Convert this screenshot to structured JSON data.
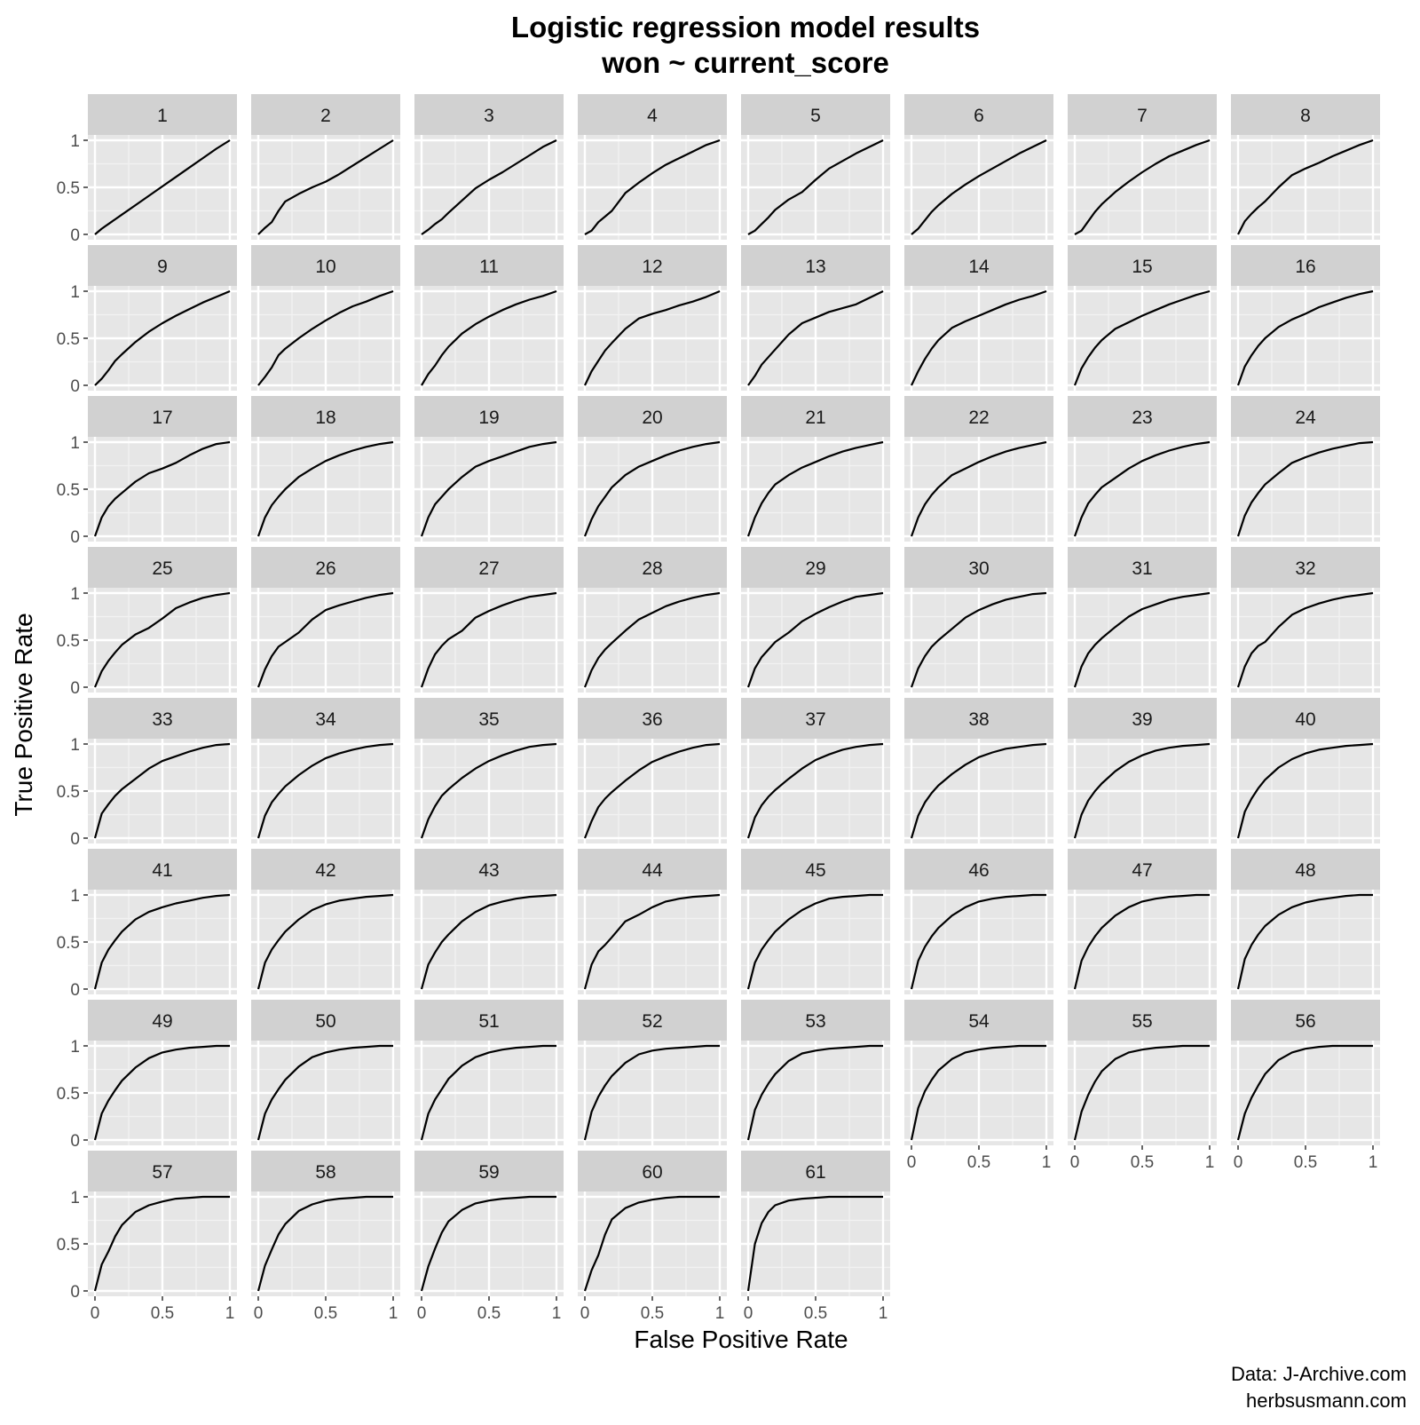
{
  "chart_data": {
    "type": "line",
    "title": "Logistic regression model results",
    "subtitle": "won ~ current_score",
    "xlabel": "False Positive Rate",
    "ylabel": "True Positive Rate",
    "xlim": [
      0,
      1
    ],
    "ylim": [
      0,
      1
    ],
    "x_ticks": [
      0,
      0.5,
      1
    ],
    "x_tick_labels": [
      "0",
      "0.5",
      "1"
    ],
    "y_ticks": [
      0,
      0.5,
      1
    ],
    "y_tick_labels": [
      "0",
      "0.5",
      "1"
    ],
    "grid": true,
    "facet_columns": 8,
    "curve_x": [
      0,
      0.05,
      0.1,
      0.15,
      0.2,
      0.3,
      0.4,
      0.5,
      0.6,
      0.7,
      0.8,
      0.9,
      1
    ],
    "panels": [
      {
        "label": "1",
        "y": [
          0,
          0.06,
          0.11,
          0.16,
          0.21,
          0.31,
          0.41,
          0.51,
          0.61,
          0.71,
          0.81,
          0.91,
          1
        ]
      },
      {
        "label": "2",
        "y": [
          0,
          0.07,
          0.13,
          0.25,
          0.35,
          0.43,
          0.5,
          0.56,
          0.64,
          0.73,
          0.82,
          0.91,
          1
        ]
      },
      {
        "label": "3",
        "y": [
          0,
          0.05,
          0.11,
          0.16,
          0.23,
          0.36,
          0.49,
          0.58,
          0.66,
          0.75,
          0.84,
          0.93,
          1
        ]
      },
      {
        "label": "4",
        "y": [
          0,
          0.04,
          0.13,
          0.19,
          0.25,
          0.44,
          0.55,
          0.65,
          0.74,
          0.81,
          0.88,
          0.95,
          1
        ]
      },
      {
        "label": "5",
        "y": [
          0,
          0.04,
          0.11,
          0.18,
          0.26,
          0.37,
          0.45,
          0.58,
          0.7,
          0.78,
          0.86,
          0.93,
          1
        ]
      },
      {
        "label": "6",
        "y": [
          0,
          0.06,
          0.15,
          0.24,
          0.31,
          0.43,
          0.53,
          0.62,
          0.7,
          0.78,
          0.86,
          0.93,
          1
        ]
      },
      {
        "label": "7",
        "y": [
          0,
          0.04,
          0.14,
          0.24,
          0.32,
          0.45,
          0.56,
          0.66,
          0.75,
          0.83,
          0.89,
          0.95,
          1
        ]
      },
      {
        "label": "8",
        "y": [
          0,
          0.14,
          0.22,
          0.29,
          0.35,
          0.5,
          0.63,
          0.7,
          0.76,
          0.83,
          0.89,
          0.95,
          1
        ]
      },
      {
        "label": "9",
        "y": [
          0,
          0.07,
          0.16,
          0.26,
          0.33,
          0.46,
          0.57,
          0.66,
          0.74,
          0.81,
          0.88,
          0.94,
          1
        ]
      },
      {
        "label": "10",
        "y": [
          0,
          0.09,
          0.19,
          0.32,
          0.39,
          0.5,
          0.6,
          0.69,
          0.77,
          0.84,
          0.89,
          0.95,
          1
        ]
      },
      {
        "label": "11",
        "y": [
          0,
          0.12,
          0.21,
          0.32,
          0.41,
          0.55,
          0.65,
          0.73,
          0.8,
          0.86,
          0.91,
          0.95,
          1
        ]
      },
      {
        "label": "12",
        "y": [
          0,
          0.15,
          0.26,
          0.37,
          0.45,
          0.6,
          0.71,
          0.76,
          0.8,
          0.85,
          0.89,
          0.94,
          1
        ]
      },
      {
        "label": "13",
        "y": [
          0,
          0.1,
          0.22,
          0.3,
          0.38,
          0.54,
          0.66,
          0.72,
          0.78,
          0.82,
          0.86,
          0.93,
          1
        ]
      },
      {
        "label": "14",
        "y": [
          0,
          0.15,
          0.28,
          0.39,
          0.48,
          0.61,
          0.68,
          0.74,
          0.8,
          0.86,
          0.91,
          0.95,
          1
        ]
      },
      {
        "label": "15",
        "y": [
          0,
          0.18,
          0.3,
          0.4,
          0.48,
          0.6,
          0.67,
          0.74,
          0.8,
          0.86,
          0.91,
          0.96,
          1
        ]
      },
      {
        "label": "16",
        "y": [
          0,
          0.2,
          0.32,
          0.42,
          0.5,
          0.62,
          0.7,
          0.76,
          0.83,
          0.88,
          0.93,
          0.97,
          1
        ]
      },
      {
        "label": "17",
        "y": [
          0,
          0.2,
          0.32,
          0.4,
          0.46,
          0.58,
          0.67,
          0.72,
          0.78,
          0.86,
          0.93,
          0.98,
          1
        ]
      },
      {
        "label": "18",
        "y": [
          0,
          0.2,
          0.33,
          0.42,
          0.5,
          0.63,
          0.72,
          0.8,
          0.86,
          0.91,
          0.95,
          0.98,
          1
        ]
      },
      {
        "label": "19",
        "y": [
          0,
          0.2,
          0.34,
          0.42,
          0.5,
          0.63,
          0.74,
          0.8,
          0.85,
          0.9,
          0.95,
          0.98,
          1
        ]
      },
      {
        "label": "20",
        "y": [
          0,
          0.18,
          0.32,
          0.42,
          0.52,
          0.65,
          0.74,
          0.8,
          0.86,
          0.91,
          0.95,
          0.98,
          1
        ]
      },
      {
        "label": "21",
        "y": [
          0,
          0.2,
          0.35,
          0.46,
          0.55,
          0.65,
          0.73,
          0.79,
          0.85,
          0.9,
          0.94,
          0.97,
          1
        ]
      },
      {
        "label": "22",
        "y": [
          0,
          0.2,
          0.34,
          0.44,
          0.52,
          0.65,
          0.72,
          0.79,
          0.85,
          0.9,
          0.94,
          0.97,
          1
        ]
      },
      {
        "label": "23",
        "y": [
          0,
          0.2,
          0.35,
          0.44,
          0.52,
          0.62,
          0.72,
          0.8,
          0.86,
          0.91,
          0.95,
          0.98,
          1
        ]
      },
      {
        "label": "24",
        "y": [
          0,
          0.22,
          0.36,
          0.46,
          0.55,
          0.67,
          0.78,
          0.84,
          0.89,
          0.93,
          0.96,
          0.99,
          1
        ]
      },
      {
        "label": "25",
        "y": [
          0,
          0.17,
          0.28,
          0.37,
          0.45,
          0.56,
          0.63,
          0.73,
          0.84,
          0.9,
          0.95,
          0.98,
          1
        ]
      },
      {
        "label": "26",
        "y": [
          0,
          0.19,
          0.33,
          0.43,
          0.48,
          0.58,
          0.72,
          0.82,
          0.87,
          0.91,
          0.95,
          0.98,
          1
        ]
      },
      {
        "label": "27",
        "y": [
          0,
          0.2,
          0.35,
          0.44,
          0.51,
          0.6,
          0.74,
          0.81,
          0.87,
          0.92,
          0.96,
          0.98,
          1
        ]
      },
      {
        "label": "28",
        "y": [
          0,
          0.18,
          0.31,
          0.4,
          0.47,
          0.6,
          0.72,
          0.79,
          0.86,
          0.91,
          0.95,
          0.98,
          1
        ]
      },
      {
        "label": "29",
        "y": [
          0,
          0.2,
          0.32,
          0.4,
          0.48,
          0.58,
          0.7,
          0.78,
          0.85,
          0.91,
          0.96,
          0.98,
          1
        ]
      },
      {
        "label": "30",
        "y": [
          0,
          0.2,
          0.33,
          0.43,
          0.5,
          0.62,
          0.74,
          0.82,
          0.88,
          0.93,
          0.96,
          0.99,
          1
        ]
      },
      {
        "label": "31",
        "y": [
          0,
          0.22,
          0.36,
          0.45,
          0.52,
          0.64,
          0.75,
          0.83,
          0.88,
          0.93,
          0.96,
          0.98,
          1
        ]
      },
      {
        "label": "32",
        "y": [
          0,
          0.22,
          0.36,
          0.44,
          0.48,
          0.64,
          0.77,
          0.84,
          0.89,
          0.93,
          0.96,
          0.98,
          1
        ]
      },
      {
        "label": "33",
        "y": [
          0,
          0.26,
          0.36,
          0.45,
          0.52,
          0.63,
          0.74,
          0.82,
          0.87,
          0.92,
          0.96,
          0.99,
          1
        ]
      },
      {
        "label": "34",
        "y": [
          0,
          0.24,
          0.38,
          0.47,
          0.55,
          0.67,
          0.77,
          0.85,
          0.9,
          0.94,
          0.97,
          0.99,
          1
        ]
      },
      {
        "label": "35",
        "y": [
          0,
          0.2,
          0.34,
          0.45,
          0.52,
          0.64,
          0.74,
          0.82,
          0.88,
          0.93,
          0.97,
          0.99,
          1
        ]
      },
      {
        "label": "36",
        "y": [
          0,
          0.18,
          0.33,
          0.42,
          0.49,
          0.61,
          0.72,
          0.81,
          0.87,
          0.92,
          0.96,
          0.99,
          1
        ]
      },
      {
        "label": "37",
        "y": [
          0,
          0.22,
          0.35,
          0.44,
          0.51,
          0.63,
          0.74,
          0.83,
          0.89,
          0.94,
          0.97,
          0.99,
          1
        ]
      },
      {
        "label": "38",
        "y": [
          0,
          0.24,
          0.38,
          0.48,
          0.56,
          0.68,
          0.78,
          0.86,
          0.91,
          0.95,
          0.97,
          0.99,
          1
        ]
      },
      {
        "label": "39",
        "y": [
          0,
          0.25,
          0.4,
          0.5,
          0.58,
          0.71,
          0.81,
          0.88,
          0.93,
          0.96,
          0.98,
          0.99,
          1
        ]
      },
      {
        "label": "40",
        "y": [
          0,
          0.28,
          0.42,
          0.53,
          0.62,
          0.75,
          0.84,
          0.9,
          0.94,
          0.96,
          0.98,
          0.99,
          1
        ]
      },
      {
        "label": "41",
        "y": [
          0,
          0.28,
          0.42,
          0.52,
          0.61,
          0.74,
          0.82,
          0.87,
          0.91,
          0.94,
          0.97,
          0.99,
          1
        ]
      },
      {
        "label": "42",
        "y": [
          0,
          0.28,
          0.42,
          0.52,
          0.61,
          0.74,
          0.84,
          0.9,
          0.94,
          0.96,
          0.98,
          0.99,
          1
        ]
      },
      {
        "label": "43",
        "y": [
          0,
          0.26,
          0.39,
          0.5,
          0.58,
          0.72,
          0.82,
          0.89,
          0.93,
          0.96,
          0.98,
          0.99,
          1
        ]
      },
      {
        "label": "44",
        "y": [
          0,
          0.26,
          0.4,
          0.47,
          0.55,
          0.72,
          0.79,
          0.87,
          0.93,
          0.96,
          0.98,
          0.99,
          1
        ]
      },
      {
        "label": "45",
        "y": [
          0,
          0.28,
          0.42,
          0.52,
          0.61,
          0.74,
          0.84,
          0.91,
          0.96,
          0.98,
          0.99,
          1.0,
          1
        ]
      },
      {
        "label": "46",
        "y": [
          0,
          0.3,
          0.45,
          0.56,
          0.65,
          0.78,
          0.87,
          0.93,
          0.96,
          0.98,
          0.99,
          1.0,
          1
        ]
      },
      {
        "label": "47",
        "y": [
          0,
          0.3,
          0.45,
          0.56,
          0.65,
          0.78,
          0.87,
          0.93,
          0.96,
          0.98,
          0.99,
          1.0,
          1
        ]
      },
      {
        "label": "48",
        "y": [
          0,
          0.32,
          0.47,
          0.58,
          0.67,
          0.79,
          0.87,
          0.92,
          0.95,
          0.97,
          0.99,
          1.0,
          1
        ]
      },
      {
        "label": "49",
        "y": [
          0,
          0.28,
          0.42,
          0.53,
          0.63,
          0.77,
          0.87,
          0.93,
          0.96,
          0.98,
          0.99,
          1.0,
          1
        ]
      },
      {
        "label": "50",
        "y": [
          0,
          0.28,
          0.43,
          0.54,
          0.64,
          0.78,
          0.88,
          0.93,
          0.96,
          0.98,
          0.99,
          1.0,
          1
        ]
      },
      {
        "label": "51",
        "y": [
          0,
          0.28,
          0.43,
          0.54,
          0.65,
          0.79,
          0.88,
          0.93,
          0.96,
          0.98,
          0.99,
          1.0,
          1
        ]
      },
      {
        "label": "52",
        "y": [
          0,
          0.3,
          0.46,
          0.58,
          0.68,
          0.82,
          0.91,
          0.95,
          0.97,
          0.98,
          0.99,
          1.0,
          1
        ]
      },
      {
        "label": "53",
        "y": [
          0,
          0.32,
          0.48,
          0.6,
          0.7,
          0.84,
          0.92,
          0.95,
          0.97,
          0.98,
          0.99,
          1.0,
          1
        ]
      },
      {
        "label": "54",
        "y": [
          0,
          0.34,
          0.52,
          0.64,
          0.74,
          0.86,
          0.93,
          0.96,
          0.98,
          0.99,
          1.0,
          1.0,
          1
        ]
      },
      {
        "label": "55",
        "y": [
          0,
          0.3,
          0.48,
          0.62,
          0.73,
          0.86,
          0.93,
          0.96,
          0.98,
          0.99,
          1.0,
          1.0,
          1
        ]
      },
      {
        "label": "56",
        "y": [
          0,
          0.28,
          0.45,
          0.58,
          0.7,
          0.85,
          0.93,
          0.97,
          0.99,
          1.0,
          1.0,
          1.0,
          1
        ]
      },
      {
        "label": "57",
        "y": [
          0,
          0.28,
          0.42,
          0.58,
          0.7,
          0.84,
          0.91,
          0.95,
          0.98,
          0.99,
          1.0,
          1.0,
          1
        ]
      },
      {
        "label": "58",
        "y": [
          0,
          0.27,
          0.44,
          0.6,
          0.71,
          0.85,
          0.92,
          0.96,
          0.98,
          0.99,
          1.0,
          1.0,
          1
        ]
      },
      {
        "label": "59",
        "y": [
          0,
          0.26,
          0.45,
          0.62,
          0.74,
          0.86,
          0.93,
          0.96,
          0.98,
          0.99,
          1.0,
          1.0,
          1
        ]
      },
      {
        "label": "60",
        "y": [
          0,
          0.22,
          0.38,
          0.6,
          0.76,
          0.88,
          0.94,
          0.97,
          0.99,
          1.0,
          1.0,
          1.0,
          1
        ]
      },
      {
        "label": "61",
        "y": [
          0,
          0.5,
          0.72,
          0.84,
          0.91,
          0.96,
          0.98,
          0.99,
          1.0,
          1.0,
          1.0,
          1.0,
          1
        ]
      }
    ]
  },
  "caption": {
    "source": "Data: J-Archive.com",
    "site": "herbsusmann.com"
  },
  "colors": {
    "panel_background": "#e6e6e6",
    "strip_background": "#d1d1d1",
    "grid_major": "#ffffff",
    "grid_minor": "#f2f2f2",
    "curve": "#000000",
    "axis_text": "#4d4d4d",
    "strip_text": "#1a1a1a"
  }
}
